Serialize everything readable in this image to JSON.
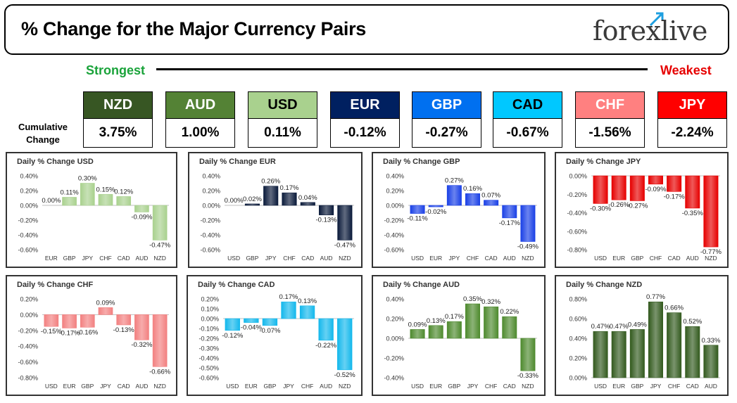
{
  "header": {
    "title": "% Change for the Major Currency Pairs",
    "logo_text": "forexlive"
  },
  "scale": {
    "strongest": "Strongest",
    "weakest": "Weakest"
  },
  "cumulative_label_line1": "Cumulative",
  "cumulative_label_line2": "Change",
  "currencies": [
    {
      "code": "NZD",
      "value": "3.75%",
      "color": "#375623",
      "text_color": "#ffffff"
    },
    {
      "code": "AUD",
      "value": "1.00%",
      "color": "#548235",
      "text_color": "#ffffff"
    },
    {
      "code": "USD",
      "value": "0.11%",
      "color": "#a9d18e",
      "text_color": "#000000"
    },
    {
      "code": "EUR",
      "value": "-0.12%",
      "color": "#002060",
      "text_color": "#ffffff"
    },
    {
      "code": "GBP",
      "value": "-0.27%",
      "color": "#0070f0",
      "text_color": "#ffffff"
    },
    {
      "code": "CAD",
      "value": "-0.67%",
      "color": "#00c8ff",
      "text_color": "#000000"
    },
    {
      "code": "CHF",
      "value": "-1.56%",
      "color": "#ff8080",
      "text_color": "#ffffff"
    },
    {
      "code": "JPY",
      "value": "-2.24%",
      "color": "#ff0000",
      "text_color": "#ffffff"
    }
  ],
  "chart_data": [
    {
      "type": "bar",
      "title": "Daily % Change USD",
      "categories": [
        "EUR",
        "GBP",
        "JPY",
        "CHF",
        "CAD",
        "AUD",
        "NZD"
      ],
      "values": [
        0.0,
        0.11,
        0.3,
        0.15,
        0.12,
        -0.09,
        -0.47
      ],
      "labels": [
        "0.00%",
        "0.11%",
        "0.30%",
        "0.15%",
        "0.12%",
        "-0.09%",
        "-0.47%"
      ],
      "ticks": [
        "0.40%",
        "0.20%",
        "0.00%",
        "-0.20%",
        "-0.40%",
        "-0.60%"
      ],
      "ylim": [
        -0.6,
        0.4
      ],
      "step": 0.2,
      "color": "#a9d18e"
    },
    {
      "type": "bar",
      "title": "Daily % Change EUR",
      "categories": [
        "USD",
        "GBP",
        "JPY",
        "CHF",
        "CAD",
        "AUD",
        "NZD"
      ],
      "values": [
        0.0,
        0.02,
        0.26,
        0.17,
        0.04,
        -0.13,
        -0.47
      ],
      "labels": [
        "0.00%",
        "0.02%",
        "0.26%",
        "0.17%",
        "0.04%",
        "-0.13%",
        "-0.47%"
      ],
      "ticks": [
        "0.40%",
        "0.20%",
        "0.00%",
        "-0.20%",
        "-0.40%",
        "-0.60%"
      ],
      "ylim": [
        -0.6,
        0.4
      ],
      "step": 0.2,
      "color": "#0a1a3a"
    },
    {
      "type": "bar",
      "title": "Daily % Change GBP",
      "categories": [
        "USD",
        "EUR",
        "JPY",
        "CHF",
        "CAD",
        "AUD",
        "NZD"
      ],
      "values": [
        -0.11,
        -0.02,
        0.27,
        0.16,
        0.07,
        -0.17,
        -0.49
      ],
      "labels": [
        "-0.11%",
        "-0.02%",
        "0.27%",
        "0.16%",
        "0.07%",
        "-0.17%",
        "-0.49%"
      ],
      "ticks": [
        "0.40%",
        "0.20%",
        "0.00%",
        "-0.20%",
        "-0.40%",
        "-0.60%"
      ],
      "ylim": [
        -0.6,
        0.4
      ],
      "step": 0.2,
      "color": "#1a40e6"
    },
    {
      "type": "bar",
      "title": "Daily % Change JPY",
      "categories": [
        "USD",
        "EUR",
        "GBP",
        "CHF",
        "CAD",
        "AUD",
        "NZD"
      ],
      "values": [
        -0.3,
        -0.26,
        -0.27,
        -0.09,
        -0.17,
        -0.35,
        -0.77
      ],
      "labels": [
        "-0.30%",
        "-0.26%",
        "-0.27%",
        "-0.09%",
        "-0.17%",
        "-0.35%",
        "-0.77%"
      ],
      "ticks": [
        "0.00%",
        "-0.20%",
        "-0.40%",
        "-0.60%",
        "-0.80%"
      ],
      "ylim": [
        -0.8,
        0.0
      ],
      "step": 0.2,
      "color": "#e60000"
    },
    {
      "type": "bar",
      "title": "Daily % Change CHF",
      "categories": [
        "USD",
        "EUR",
        "GBP",
        "JPY",
        "CAD",
        "AUD",
        "NZD"
      ],
      "values": [
        -0.15,
        -0.17,
        -0.16,
        0.09,
        -0.13,
        -0.32,
        -0.66
      ],
      "labels": [
        "-0.15%",
        "-0.17%",
        "-0.16%",
        "0.09%",
        "-0.13%",
        "-0.32%",
        "-0.66%"
      ],
      "ticks": [
        "0.20%",
        "0.00%",
        "-0.20%",
        "-0.40%",
        "-0.60%",
        "-0.80%"
      ],
      "ylim": [
        -0.8,
        0.2
      ],
      "step": 0.2,
      "color": "#f28080"
    },
    {
      "type": "bar",
      "title": "Daily % Change CAD",
      "categories": [
        "USD",
        "EUR",
        "GBP",
        "JPY",
        "CHF",
        "AUD",
        "NZD"
      ],
      "values": [
        -0.12,
        -0.04,
        -0.07,
        0.17,
        0.13,
        -0.22,
        -0.52
      ],
      "labels": [
        "-0.12%",
        "-0.04%",
        "-0.07%",
        "0.17%",
        "0.13%",
        "-0.22%",
        "-0.52%"
      ],
      "ticks": [
        "0.20%",
        "0.10%",
        "0.00%",
        "-0.10%",
        "-0.20%",
        "-0.30%",
        "-0.40%",
        "-0.50%",
        "-0.60%"
      ],
      "ylim": [
        -0.6,
        0.2
      ],
      "step": 0.1,
      "color": "#14b8ec"
    },
    {
      "type": "bar",
      "title": "Daily % Change AUD",
      "categories": [
        "USD",
        "EUR",
        "GBP",
        "JPY",
        "CHF",
        "CAD",
        "NZD"
      ],
      "values": [
        0.09,
        0.13,
        0.17,
        0.35,
        0.32,
        0.22,
        -0.33
      ],
      "labels": [
        "0.09%",
        "0.13%",
        "0.17%",
        "0.35%",
        "0.32%",
        "0.22%",
        "-0.33%"
      ],
      "ticks": [
        "0.40%",
        "0.20%",
        "0.00%",
        "-0.20%",
        "-0.40%"
      ],
      "ylim": [
        -0.4,
        0.4
      ],
      "step": 0.2,
      "color": "#4e8a2e"
    },
    {
      "type": "bar",
      "title": "Daily % Change NZD",
      "categories": [
        "USD",
        "EUR",
        "GBP",
        "JPY",
        "CHF",
        "CAD",
        "AUD"
      ],
      "values": [
        0.47,
        0.47,
        0.49,
        0.77,
        0.66,
        0.52,
        0.33
      ],
      "labels": [
        "0.47%",
        "0.47%",
        "0.49%",
        "0.77%",
        "0.66%",
        "0.52%",
        "0.33%"
      ],
      "ticks": [
        "0.80%",
        "0.60%",
        "0.40%",
        "0.20%",
        "0.00%"
      ],
      "ylim": [
        0.0,
        0.8
      ],
      "step": 0.2,
      "color": "#335a1e"
    }
  ]
}
